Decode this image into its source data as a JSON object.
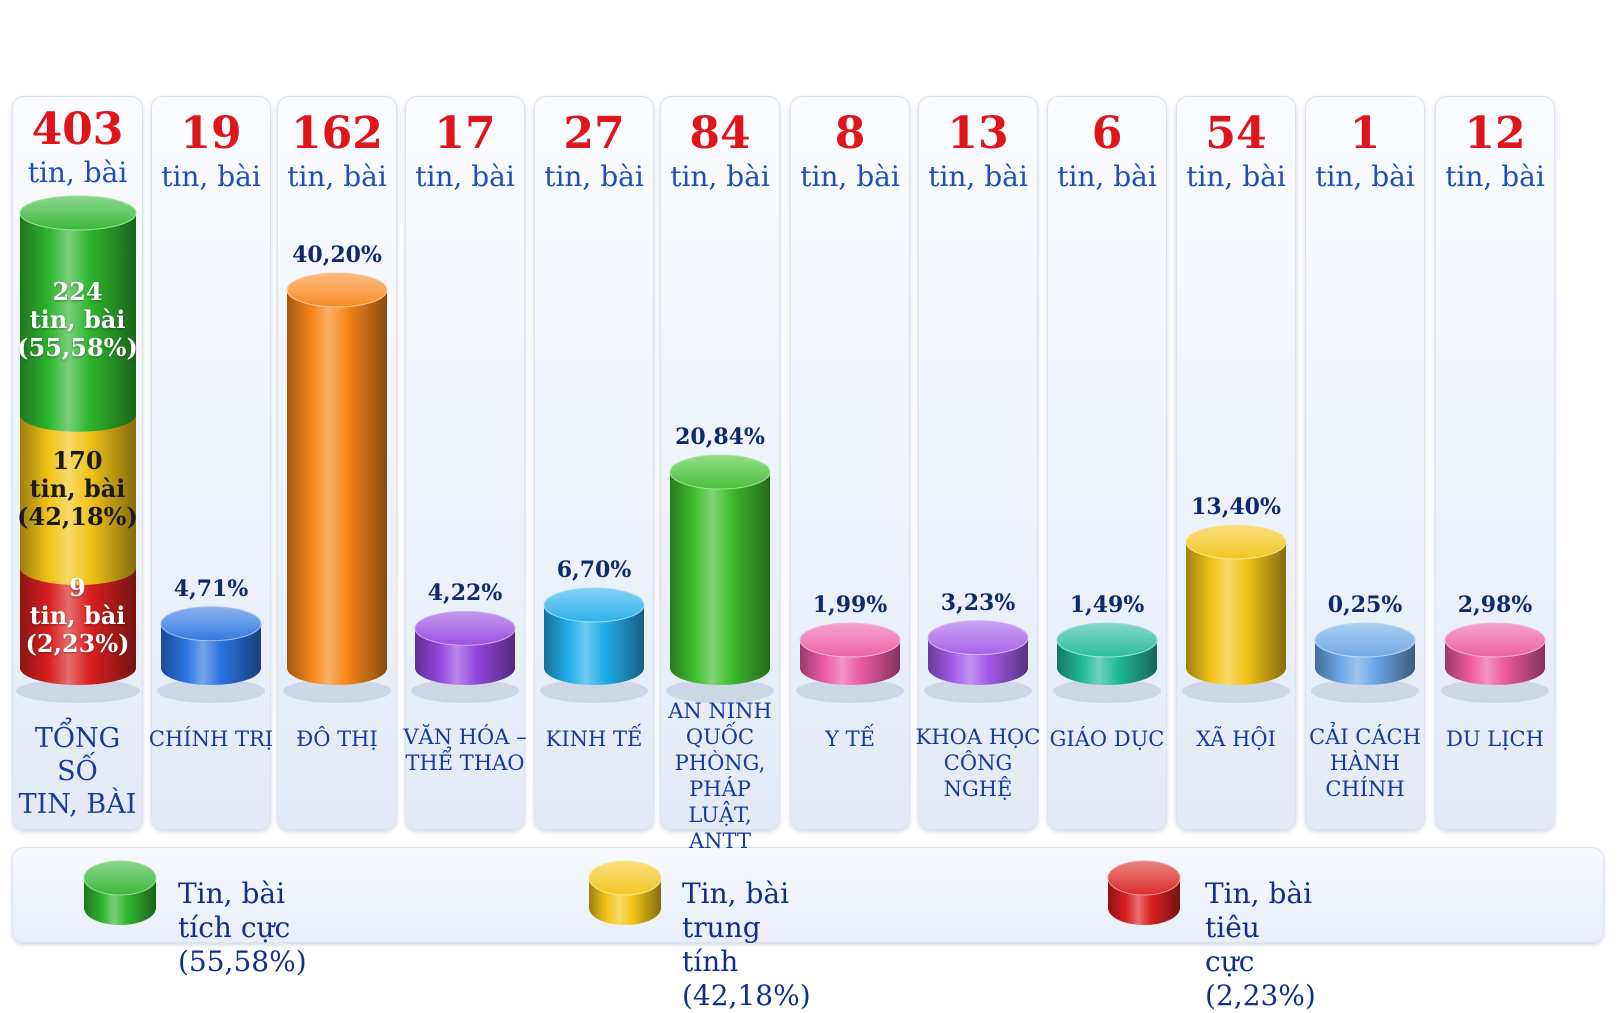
{
  "chart_data": {
    "type": "bar",
    "total": {
      "count": "403",
      "unit": "tin, bài",
      "label_lines": [
        "TỔNG SỐ",
        "TIN, BÀI"
      ],
      "segments": [
        {
          "name": "Tin, bài tích cực",
          "count": 224,
          "count_text": "224",
          "unit": "tin, bài",
          "pct_text": "(55,58%)",
          "pct": 55.58,
          "color": "#2fb52f"
        },
        {
          "name": "Tin, bài trung tính",
          "count": 170,
          "count_text": "170",
          "unit": "tin, bài",
          "pct_text": "(42,18%)",
          "pct": 42.18,
          "color": "#f2c418"
        },
        {
          "name": "Tin, bài tiêu cực",
          "count": 9,
          "count_text": "9",
          "unit": "tin, bài",
          "pct_text": "(2,23%)",
          "pct": 2.23,
          "color": "#d8201f"
        }
      ]
    },
    "categories": [
      {
        "label_lines": [
          "CHÍNH TRỊ"
        ],
        "count": "19",
        "unit": "tin, bài",
        "pct_text": "4,71%",
        "value": 4.71,
        "color": "#2a73e0"
      },
      {
        "label_lines": [
          "ĐÔ THỊ"
        ],
        "count": "162",
        "unit": "tin, bài",
        "pct_text": "40,20%",
        "value": 40.2,
        "color": "#f7861a"
      },
      {
        "label_lines": [
          "VĂN HÓA –",
          "THỂ THAO"
        ],
        "count": "17",
        "unit": "tin, bài",
        "pct_text": "4,22%",
        "value": 4.22,
        "color": "#9547e0"
      },
      {
        "label_lines": [
          "KINH TẾ"
        ],
        "count": "27",
        "unit": "tin, bài",
        "pct_text": "6,70%",
        "value": 6.7,
        "color": "#22aeea"
      },
      {
        "label_lines": [
          "AN NINH",
          "QUỐC PHÒNG,",
          "PHÁP LUẬT,",
          "ANTT"
        ],
        "count": "84",
        "unit": "tin, bài",
        "pct_text": "20,84%",
        "value": 20.84,
        "color": "#3fbf2e"
      },
      {
        "label_lines": [
          "Y TẾ"
        ],
        "count": "8",
        "unit": "tin, bài",
        "pct_text": "1,99%",
        "value": 1.99,
        "color": "#ec5aa8"
      },
      {
        "label_lines": [
          "KHOA HỌC",
          "CÔNG NGHỆ"
        ],
        "count": "13",
        "unit": "tin, bài",
        "pct_text": "3,23%",
        "value": 3.23,
        "color": "#a25ae8"
      },
      {
        "label_lines": [
          "GIÁO DỤC"
        ],
        "count": "6",
        "unit": "tin, bài",
        "pct_text": "1,49%",
        "value": 1.49,
        "color": "#22b99a"
      },
      {
        "label_lines": [
          "XÃ HỘI"
        ],
        "count": "54",
        "unit": "tin, bài",
        "pct_text": "13,40%",
        "value": 13.4,
        "color": "#f2c418"
      },
      {
        "label_lines": [
          "CẢI CÁCH",
          "HÀNH CHÍNH"
        ],
        "count": "1",
        "unit": "tin, bài",
        "pct_text": "0,25%",
        "value": 0.25,
        "color": "#6aa6e6"
      },
      {
        "label_lines": [
          "DU LỊCH"
        ],
        "count": "12",
        "unit": "tin, bài",
        "pct_text": "2,98%",
        "value": 2.98,
        "color": "#ec5a9e"
      }
    ],
    "legend": [
      {
        "label": "Tin, bài tích cực (55,58%)",
        "color": "#2fb52f"
      },
      {
        "label": "Tin, bài trung tính (42,18%)",
        "color": "#f2c418"
      },
      {
        "label": "Tin, bài tiêu cực (2,23%)",
        "color": "#d8201f"
      }
    ],
    "legend_placement": "bottom",
    "grid": false
  }
}
